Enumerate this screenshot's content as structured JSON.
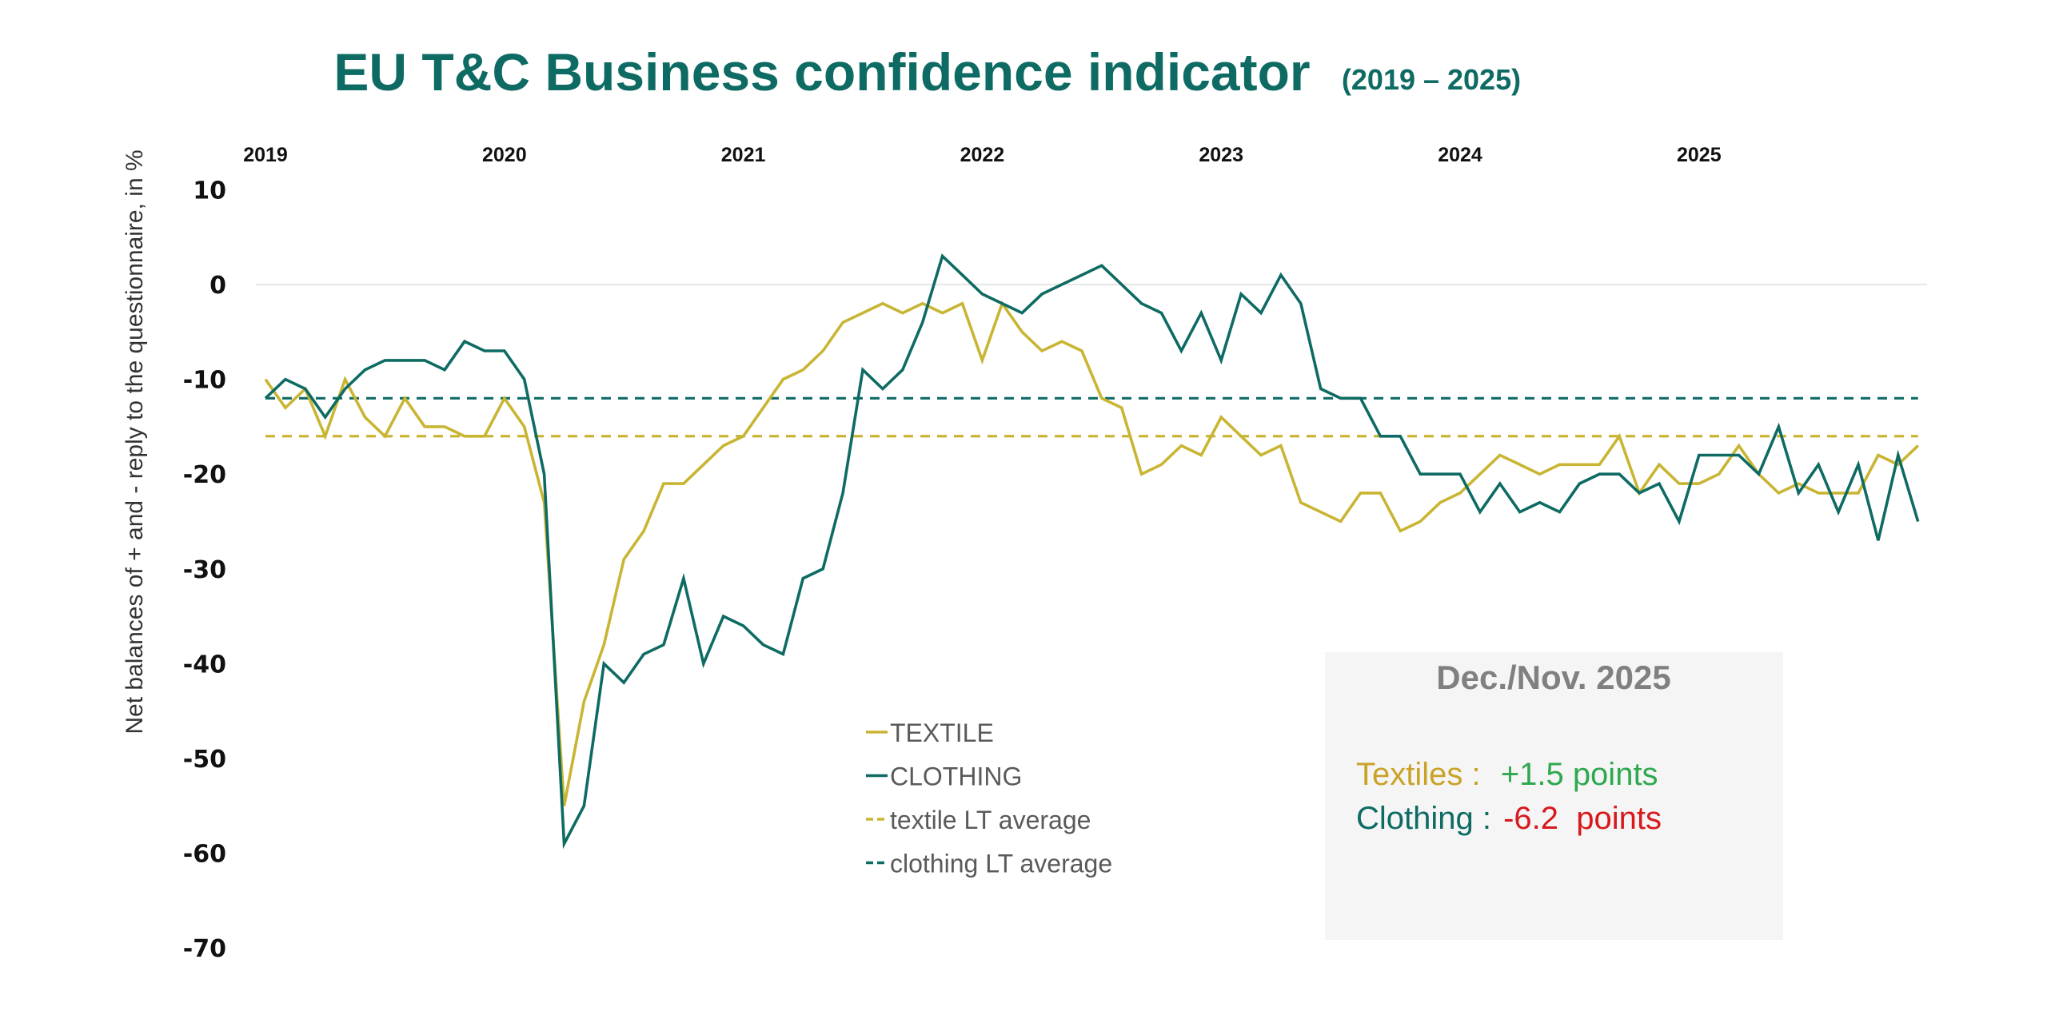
{
  "chart_data": {
    "type": "line",
    "title": "EU T&C Business confidence indicator",
    "subtitle": "(2019 – 2025)",
    "xlabel": "",
    "ylabel": "Net balances of + and - reply to the questionnaire, in %",
    "x_start": "2019-01",
    "x_end": "2025-12",
    "frequency": "monthly",
    "year_labels": [
      "2019",
      "2020",
      "2021",
      "2022",
      "2023",
      "2024",
      "2025"
    ],
    "ylim": [
      -70,
      10
    ],
    "yticks": [
      10,
      0,
      -10,
      -20,
      -30,
      -40,
      -50,
      -60,
      -70
    ],
    "grid": "zero-line only",
    "legend_position": "bottom-center",
    "series": [
      {
        "name": "TEXTILE",
        "style": "solid",
        "color": "#c9b534",
        "values": [
          -10,
          -13,
          -11,
          -16,
          -10,
          -14,
          -16,
          -12,
          -15,
          -15,
          -16,
          -16,
          -12,
          -15,
          -23,
          -55,
          -44,
          -38,
          -29,
          -26,
          -21,
          -21,
          -19,
          -17,
          -16,
          -13,
          -10,
          -9,
          -7,
          -4,
          -3,
          -2,
          -3,
          -2,
          -3,
          -2,
          -8,
          -2,
          -5,
          -7,
          -6,
          -7,
          -12,
          -13,
          -20,
          -19,
          -17,
          -18,
          -14,
          -16,
          -18,
          -17,
          -23,
          -24,
          -25,
          -22,
          -22,
          -26,
          -25,
          -23,
          -22,
          -20,
          -18,
          -19,
          -20,
          -19,
          -19,
          -19,
          -16,
          -22,
          -19,
          -21,
          -21,
          -20,
          -17,
          -20,
          -22,
          -21,
          -22,
          -22,
          -22,
          -18,
          -19,
          -17
        ]
      },
      {
        "name": "CLOTHING",
        "style": "solid",
        "color": "#0e6b63",
        "values": [
          -12,
          -10,
          -11,
          -14,
          -11,
          -9,
          -8,
          -8,
          -8,
          -9,
          -6,
          -7,
          -7,
          -10,
          -20,
          -59,
          -55,
          -40,
          -42,
          -39,
          -38,
          -31,
          -40,
          -35,
          -36,
          -38,
          -39,
          -31,
          -30,
          -22,
          -9,
          -11,
          -9,
          -4,
          3,
          1,
          -1,
          -2,
          -3,
          -1,
          0,
          1,
          2,
          0,
          -2,
          -3,
          -7,
          -3,
          -8,
          -1,
          -3,
          1,
          -2,
          -11,
          -12,
          -12,
          -16,
          -16,
          -20,
          -20,
          -20,
          -24,
          -21,
          -24,
          -23,
          -24,
          -21,
          -20,
          -20,
          -22,
          -21,
          -25,
          -18,
          -18,
          -18,
          -20,
          -15,
          -22,
          -19,
          -24,
          -19,
          -27,
          -18,
          -25
        ]
      },
      {
        "name": "textile LT average",
        "style": "dashed",
        "color": "#c9b534",
        "constant": -16
      },
      {
        "name": "clothing LT average",
        "style": "dashed",
        "color": "#0e6b63",
        "constant": -12
      }
    ],
    "annotation": {
      "title": "Dec./Nov. 2025",
      "lines": [
        {
          "label": "Textiles :",
          "value": "+1.5 points",
          "label_color": "#c9a227",
          "value_color": "#2fa84f"
        },
        {
          "label": "Clothing :",
          "value": "-6.2  points",
          "label_color": "#0e6b63",
          "value_color": "#d7191c"
        }
      ]
    }
  }
}
